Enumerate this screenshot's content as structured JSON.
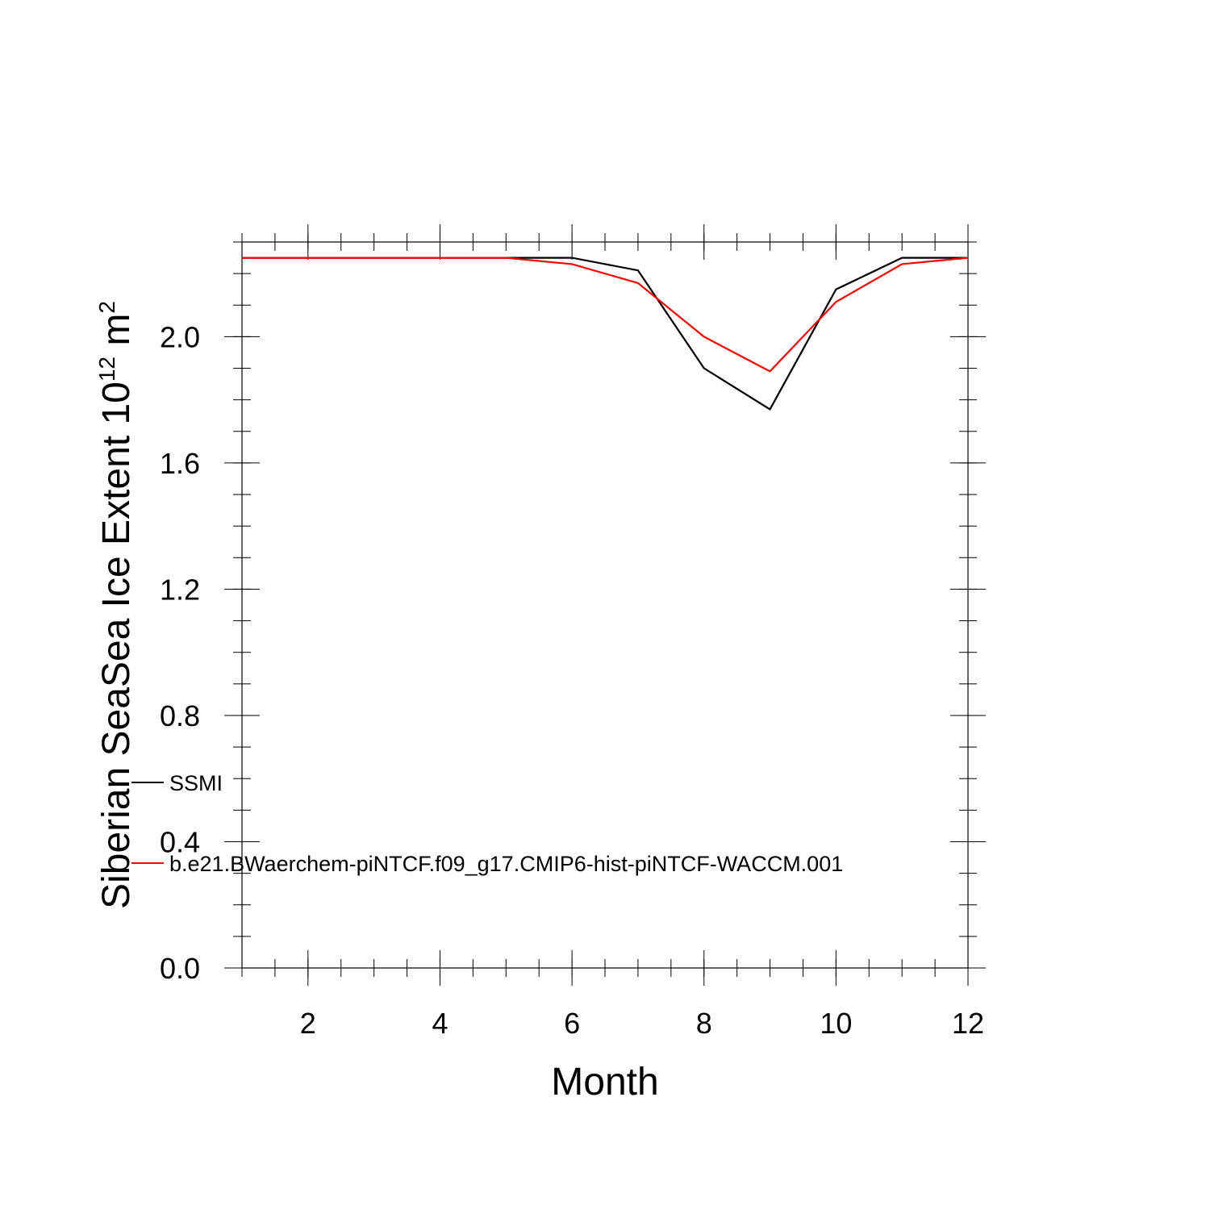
{
  "chart_data": {
    "type": "line",
    "title": "",
    "xlabel": "Month",
    "ylabel": {
      "main": "Siberian SeaSea Ice Extent 10",
      "superscript_exp": "12",
      "unit": " m",
      "superscript_unit": "2"
    },
    "xlim": [
      1,
      12
    ],
    "ylim": [
      0.0,
      2.3
    ],
    "x_ticks": [
      "2",
      "4",
      "6",
      "8",
      "10",
      "12"
    ],
    "y_ticks": [
      "0.0",
      "0.4",
      "0.8",
      "1.2",
      "1.6",
      "2.0"
    ],
    "grid": false,
    "legend_position": "inside-left",
    "x": [
      1,
      2,
      3,
      4,
      5,
      6,
      7,
      8,
      9,
      10,
      11,
      12
    ],
    "series": [
      {
        "name": "SSMI",
        "color": "#000000",
        "values": [
          2.25,
          2.25,
          2.25,
          2.25,
          2.25,
          2.25,
          2.21,
          1.9,
          1.77,
          2.15,
          2.25,
          2.25
        ]
      },
      {
        "name": "b.e21.BWaerchem-piNTCF.f09_g17.CMIP6-hist-piNTCF-WACCM.001",
        "color": "#ff0000",
        "values": [
          2.25,
          2.25,
          2.25,
          2.25,
          2.25,
          2.23,
          2.17,
          2.0,
          1.89,
          2.11,
          2.23,
          2.25
        ]
      }
    ]
  }
}
